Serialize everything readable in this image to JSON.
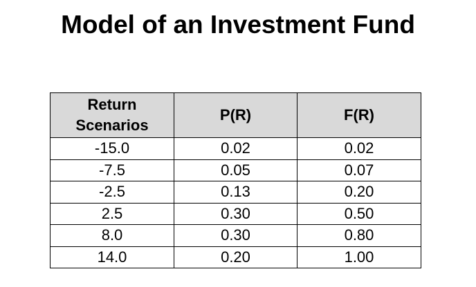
{
  "title": "Model of an Investment Fund",
  "table": {
    "headers": {
      "col1_line1": "Return",
      "col1_line2": "Scenarios",
      "col2": "P(R)",
      "col3": "F(R)"
    },
    "rows": [
      [
        "-15.0",
        "0.02",
        "0.02"
      ],
      [
        "-7.5",
        "0.05",
        "0.07"
      ],
      [
        "-2.5",
        "0.13",
        "0.20"
      ],
      [
        "2.5",
        "0.30",
        "0.50"
      ],
      [
        "8.0",
        "0.30",
        "0.80"
      ],
      [
        "14.0",
        "0.20",
        "1.00"
      ]
    ]
  },
  "colors": {
    "header_background": "#d9d9d9",
    "border": "#000000",
    "text": "#000000"
  }
}
